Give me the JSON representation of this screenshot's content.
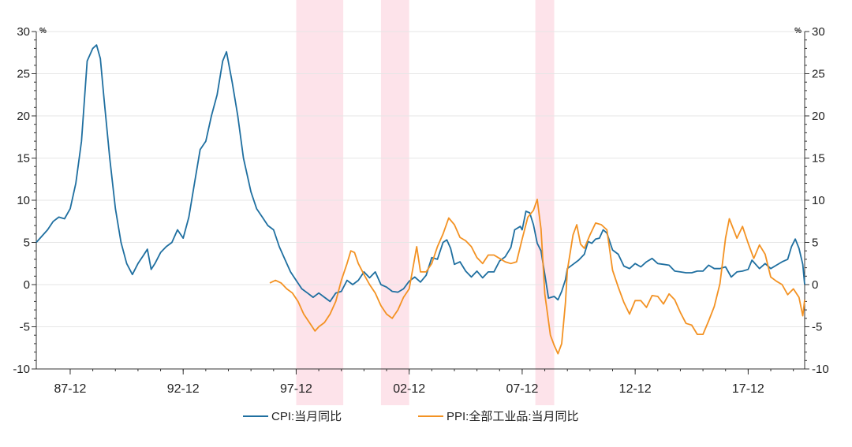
{
  "chart_data": {
    "type": "line",
    "title": "",
    "xlabel": "",
    "ylabel_left": "%",
    "ylabel_right": "%",
    "ylim": [
      -10,
      30
    ],
    "yticks": [
      -10,
      -5,
      0,
      5,
      10,
      15,
      20,
      25,
      30
    ],
    "xlim": [
      "1986-06",
      "2020-06"
    ],
    "xtick_labels": [
      {
        "date": "1987-12",
        "label": "87-12"
      },
      {
        "date": "1992-12",
        "label": "92-12"
      },
      {
        "date": "1997-12",
        "label": "97-12"
      },
      {
        "date": "2002-12",
        "label": "02-12"
      },
      {
        "date": "2007-12",
        "label": "07-12"
      },
      {
        "date": "2012-12",
        "label": "12-12"
      },
      {
        "date": "2017-12",
        "label": "17-12"
      }
    ],
    "shaded_periods": [
      {
        "start": "1997-12",
        "end": "2000-01"
      },
      {
        "start": "2001-09",
        "end": "2002-12"
      },
      {
        "start": "2008-07",
        "end": "2009-05"
      }
    ],
    "shade_color": "#fde3ea",
    "legend_position": "bottom",
    "series": [
      {
        "name": "CPI:当月同比",
        "color": "#1f6fa0",
        "points": [
          [
            "1986-06",
            5
          ],
          [
            "1986-12",
            6.5
          ],
          [
            "1987-03",
            7.5
          ],
          [
            "1987-06",
            8
          ],
          [
            "1987-09",
            7.8
          ],
          [
            "1987-12",
            9
          ],
          [
            "1988-03",
            12
          ],
          [
            "1988-06",
            17
          ],
          [
            "1988-09",
            26.5
          ],
          [
            "1988-12",
            28
          ],
          [
            "1989-02",
            28.4
          ],
          [
            "1989-04",
            26.8
          ],
          [
            "1989-06",
            22
          ],
          [
            "1989-09",
            15
          ],
          [
            "1989-12",
            9
          ],
          [
            "1990-03",
            5
          ],
          [
            "1990-06",
            2.5
          ],
          [
            "1990-09",
            1.2
          ],
          [
            "1990-12",
            2.5
          ],
          [
            "1991-03",
            3.5
          ],
          [
            "1991-05",
            4.2
          ],
          [
            "1991-07",
            1.8
          ],
          [
            "1991-09",
            2.5
          ],
          [
            "1991-12",
            3.8
          ],
          [
            "1992-03",
            4.5
          ],
          [
            "1992-06",
            5
          ],
          [
            "1992-09",
            6.5
          ],
          [
            "1992-12",
            5.5
          ],
          [
            "1993-03",
            8
          ],
          [
            "1993-06",
            12
          ],
          [
            "1993-09",
            16
          ],
          [
            "1993-12",
            17
          ],
          [
            "1994-03",
            20
          ],
          [
            "1994-06",
            22.5
          ],
          [
            "1994-09",
            26.5
          ],
          [
            "1994-11",
            27.6
          ],
          [
            "1995-02",
            24
          ],
          [
            "1995-05",
            20
          ],
          [
            "1995-08",
            15
          ],
          [
            "1995-12",
            11
          ],
          [
            "1996-03",
            9
          ],
          [
            "1996-06",
            8
          ],
          [
            "1996-09",
            7
          ],
          [
            "1996-12",
            6.5
          ],
          [
            "1997-03",
            4.5
          ],
          [
            "1997-06",
            3
          ],
          [
            "1997-09",
            1.5
          ],
          [
            "1997-12",
            0.5
          ],
          [
            "1998-03",
            -0.5
          ],
          [
            "1998-06",
            -1
          ],
          [
            "1998-09",
            -1.5
          ],
          [
            "1998-12",
            -1
          ],
          [
            "1999-03",
            -1.5
          ],
          [
            "1999-06",
            -2
          ],
          [
            "1999-09",
            -1
          ],
          [
            "1999-12",
            -0.8
          ],
          [
            "2000-03",
            0.5
          ],
          [
            "2000-06",
            0
          ],
          [
            "2000-09",
            0.5
          ],
          [
            "2000-12",
            1.5
          ],
          [
            "2001-03",
            0.8
          ],
          [
            "2001-06",
            1.5
          ],
          [
            "2001-09",
            0
          ],
          [
            "2001-12",
            -0.3
          ],
          [
            "2002-03",
            -0.8
          ],
          [
            "2002-06",
            -0.9
          ],
          [
            "2002-09",
            -0.5
          ],
          [
            "2002-12",
            0.4
          ],
          [
            "2003-03",
            0.9
          ],
          [
            "2003-06",
            0.3
          ],
          [
            "2003-09",
            1.1
          ],
          [
            "2003-12",
            3.2
          ],
          [
            "2004-03",
            3
          ],
          [
            "2004-06",
            5
          ],
          [
            "2004-08",
            5.3
          ],
          [
            "2004-10",
            4.3
          ],
          [
            "2004-12",
            2.4
          ],
          [
            "2005-03",
            2.7
          ],
          [
            "2005-06",
            1.6
          ],
          [
            "2005-09",
            0.9
          ],
          [
            "2005-12",
            1.6
          ],
          [
            "2006-03",
            0.8
          ],
          [
            "2006-06",
            1.5
          ],
          [
            "2006-09",
            1.5
          ],
          [
            "2006-12",
            2.8
          ],
          [
            "2007-03",
            3.3
          ],
          [
            "2007-06",
            4.4
          ],
          [
            "2007-08",
            6.5
          ],
          [
            "2007-11",
            6.9
          ],
          [
            "2007-12",
            6.5
          ],
          [
            "2008-02",
            8.7
          ],
          [
            "2008-04",
            8.5
          ],
          [
            "2008-06",
            7.1
          ],
          [
            "2008-08",
            4.9
          ],
          [
            "2008-10",
            4
          ],
          [
            "2008-12",
            1.2
          ],
          [
            "2009-02",
            -1.6
          ],
          [
            "2009-05",
            -1.4
          ],
          [
            "2009-07",
            -1.8
          ],
          [
            "2009-09",
            -0.8
          ],
          [
            "2009-11",
            0.6
          ],
          [
            "2009-12",
            1.9
          ],
          [
            "2010-03",
            2.4
          ],
          [
            "2010-06",
            2.9
          ],
          [
            "2010-09",
            3.6
          ],
          [
            "2010-11",
            5.1
          ],
          [
            "2011-01",
            4.9
          ],
          [
            "2011-03",
            5.4
          ],
          [
            "2011-05",
            5.5
          ],
          [
            "2011-07",
            6.5
          ],
          [
            "2011-09",
            6.1
          ],
          [
            "2011-12",
            4.1
          ],
          [
            "2012-03",
            3.6
          ],
          [
            "2012-06",
            2.2
          ],
          [
            "2012-09",
            1.9
          ],
          [
            "2012-12",
            2.5
          ],
          [
            "2013-03",
            2.1
          ],
          [
            "2013-06",
            2.7
          ],
          [
            "2013-09",
            3.1
          ],
          [
            "2013-12",
            2.5
          ],
          [
            "2014-03",
            2.4
          ],
          [
            "2014-06",
            2.3
          ],
          [
            "2014-09",
            1.6
          ],
          [
            "2014-12",
            1.5
          ],
          [
            "2015-03",
            1.4
          ],
          [
            "2015-06",
            1.4
          ],
          [
            "2015-09",
            1.6
          ],
          [
            "2015-12",
            1.6
          ],
          [
            "2016-03",
            2.3
          ],
          [
            "2016-06",
            1.9
          ],
          [
            "2016-09",
            1.9
          ],
          [
            "2016-12",
            2.1
          ],
          [
            "2017-03",
            0.9
          ],
          [
            "2017-06",
            1.5
          ],
          [
            "2017-09",
            1.6
          ],
          [
            "2017-12",
            1.8
          ],
          [
            "2018-02",
            2.9
          ],
          [
            "2018-06",
            1.9
          ],
          [
            "2018-09",
            2.5
          ],
          [
            "2018-12",
            1.9
          ],
          [
            "2019-03",
            2.3
          ],
          [
            "2019-06",
            2.7
          ],
          [
            "2019-09",
            3
          ],
          [
            "2019-11",
            4.5
          ],
          [
            "2020-01",
            5.4
          ],
          [
            "2020-03",
            4.3
          ],
          [
            "2020-05",
            2.4
          ],
          [
            "2020-06",
            0
          ]
        ]
      },
      {
        "name": "PPI:全部工业品:当月同比",
        "color": "#f39223",
        "points": [
          [
            "1996-10",
            0.2
          ],
          [
            "1997-01",
            0.5
          ],
          [
            "1997-04",
            0.2
          ],
          [
            "1997-07",
            -0.5
          ],
          [
            "1997-10",
            -1
          ],
          [
            "1998-01",
            -2
          ],
          [
            "1998-04",
            -3.5
          ],
          [
            "1998-07",
            -4.5
          ],
          [
            "1998-10",
            -5.5
          ],
          [
            "1998-12",
            -5
          ],
          [
            "1999-03",
            -4.5
          ],
          [
            "1999-06",
            -3.5
          ],
          [
            "1999-09",
            -2
          ],
          [
            "1999-12",
            0.5
          ],
          [
            "2000-03",
            2.5
          ],
          [
            "2000-05",
            4
          ],
          [
            "2000-07",
            3.8
          ],
          [
            "2000-09",
            2.5
          ],
          [
            "2000-12",
            1.2
          ],
          [
            "2001-03",
            0
          ],
          [
            "2001-06",
            -1
          ],
          [
            "2001-09",
            -2.5
          ],
          [
            "2001-12",
            -3.5
          ],
          [
            "2002-03",
            -4
          ],
          [
            "2002-06",
            -3
          ],
          [
            "2002-09",
            -1.5
          ],
          [
            "2002-12",
            -0.5
          ],
          [
            "2003-02",
            2
          ],
          [
            "2003-04",
            4.5
          ],
          [
            "2003-06",
            1.5
          ],
          [
            "2003-09",
            1.5
          ],
          [
            "2003-12",
            2.5
          ],
          [
            "2004-03",
            4.5
          ],
          [
            "2004-06",
            6
          ],
          [
            "2004-09",
            7.9
          ],
          [
            "2004-12",
            7.1
          ],
          [
            "2005-03",
            5.6
          ],
          [
            "2005-06",
            5.2
          ],
          [
            "2005-09",
            4.5
          ],
          [
            "2005-12",
            3.2
          ],
          [
            "2006-03",
            2.5
          ],
          [
            "2006-06",
            3.5
          ],
          [
            "2006-09",
            3.5
          ],
          [
            "2006-12",
            3.1
          ],
          [
            "2007-03",
            2.7
          ],
          [
            "2007-06",
            2.5
          ],
          [
            "2007-09",
            2.7
          ],
          [
            "2007-12",
            5.4
          ],
          [
            "2008-03",
            8
          ],
          [
            "2008-06",
            8.8
          ],
          [
            "2008-08",
            10.1
          ],
          [
            "2008-10",
            6.6
          ],
          [
            "2008-12",
            -1.1
          ],
          [
            "2009-03",
            -6
          ],
          [
            "2009-05",
            -7.2
          ],
          [
            "2009-07",
            -8.2
          ],
          [
            "2009-09",
            -7
          ],
          [
            "2009-11",
            -2.1
          ],
          [
            "2009-12",
            1.7
          ],
          [
            "2010-03",
            5.9
          ],
          [
            "2010-05",
            7.1
          ],
          [
            "2010-07",
            4.8
          ],
          [
            "2010-09",
            4.3
          ],
          [
            "2010-12",
            5.9
          ],
          [
            "2011-03",
            7.3
          ],
          [
            "2011-06",
            7.1
          ],
          [
            "2011-09",
            6.5
          ],
          [
            "2011-12",
            1.7
          ],
          [
            "2012-03",
            -0.3
          ],
          [
            "2012-06",
            -2.1
          ],
          [
            "2012-09",
            -3.5
          ],
          [
            "2012-12",
            -1.9
          ],
          [
            "2013-03",
            -1.9
          ],
          [
            "2013-06",
            -2.7
          ],
          [
            "2013-09",
            -1.3
          ],
          [
            "2013-12",
            -1.4
          ],
          [
            "2014-03",
            -2.3
          ],
          [
            "2014-06",
            -1.1
          ],
          [
            "2014-09",
            -1.8
          ],
          [
            "2014-12",
            -3.3
          ],
          [
            "2015-03",
            -4.6
          ],
          [
            "2015-06",
            -4.8
          ],
          [
            "2015-09",
            -5.9
          ],
          [
            "2015-12",
            -5.9
          ],
          [
            "2016-03",
            -4.3
          ],
          [
            "2016-06",
            -2.6
          ],
          [
            "2016-09",
            0.1
          ],
          [
            "2016-12",
            5.5
          ],
          [
            "2017-02",
            7.8
          ],
          [
            "2017-06",
            5.5
          ],
          [
            "2017-09",
            6.9
          ],
          [
            "2017-12",
            4.9
          ],
          [
            "2018-03",
            3.1
          ],
          [
            "2018-06",
            4.7
          ],
          [
            "2018-09",
            3.6
          ],
          [
            "2018-12",
            0.9
          ],
          [
            "2019-03",
            0.4
          ],
          [
            "2019-06",
            0
          ],
          [
            "2019-09",
            -1.2
          ],
          [
            "2019-12",
            -0.5
          ],
          [
            "2020-03",
            -1.5
          ],
          [
            "2020-05",
            -3.7
          ],
          [
            "2020-06",
            -1.8
          ]
        ]
      }
    ]
  }
}
